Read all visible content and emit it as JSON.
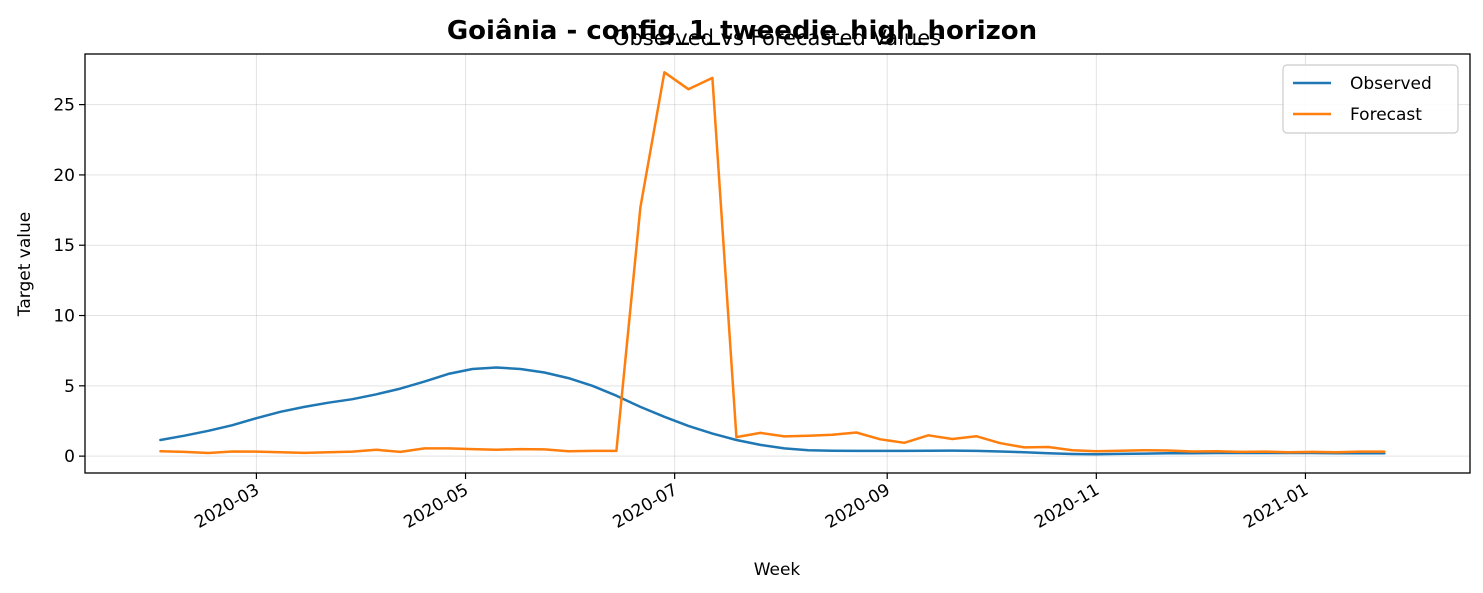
{
  "chart_data": {
    "type": "line",
    "title": "Goiânia - config_1_tweedie_high_horizon",
    "subtitle": "Observed vs Forecasted Values",
    "xlabel": "Week",
    "ylabel": "Target value",
    "x_axis_type": "date",
    "xlim": [
      "2020-01-11",
      "2021-02-18"
    ],
    "ylim": [
      -1.2,
      28.6
    ],
    "x_ticks": [
      "2020-03",
      "2020-05",
      "2020-07",
      "2020-09",
      "2020-11",
      "2021-01"
    ],
    "y_ticks": [
      0,
      5,
      10,
      15,
      20,
      25
    ],
    "grid": true,
    "legend_position": "top-right",
    "x": [
      "2020-02-02",
      "2020-02-09",
      "2020-02-16",
      "2020-02-23",
      "2020-03-01",
      "2020-03-08",
      "2020-03-15",
      "2020-03-22",
      "2020-03-29",
      "2020-04-05",
      "2020-04-12",
      "2020-04-19",
      "2020-04-26",
      "2020-05-03",
      "2020-05-10",
      "2020-05-17",
      "2020-05-24",
      "2020-05-31",
      "2020-06-07",
      "2020-06-14",
      "2020-06-21",
      "2020-06-28",
      "2020-07-05",
      "2020-07-12",
      "2020-07-19",
      "2020-07-26",
      "2020-08-02",
      "2020-08-09",
      "2020-08-16",
      "2020-08-23",
      "2020-08-30",
      "2020-09-06",
      "2020-09-13",
      "2020-09-20",
      "2020-09-27",
      "2020-10-04",
      "2020-10-11",
      "2020-10-18",
      "2020-10-25",
      "2020-11-01",
      "2020-11-08",
      "2020-11-15",
      "2020-11-22",
      "2020-11-29",
      "2020-12-06",
      "2020-12-13",
      "2020-12-20",
      "2020-12-27",
      "2021-01-03",
      "2021-01-10",
      "2021-01-17",
      "2021-01-24"
    ],
    "series": [
      {
        "name": "Observed",
        "color": "#1f77b4",
        "values": [
          1.15,
          1.45,
          1.8,
          2.2,
          2.7,
          3.15,
          3.5,
          3.8,
          4.05,
          4.4,
          4.8,
          5.3,
          5.85,
          6.2,
          6.3,
          6.2,
          5.95,
          5.55,
          5.0,
          4.3,
          3.5,
          2.8,
          2.15,
          1.6,
          1.15,
          0.8,
          0.55,
          0.42,
          0.38,
          0.37,
          0.37,
          0.37,
          0.38,
          0.39,
          0.37,
          0.33,
          0.27,
          0.2,
          0.15,
          0.14,
          0.16,
          0.18,
          0.2,
          0.21,
          0.22,
          0.22,
          0.22,
          0.22,
          0.22,
          0.21,
          0.2,
          0.2
        ]
      },
      {
        "name": "Forecast",
        "color": "#ff7f0e",
        "values": [
          0.35,
          0.3,
          0.22,
          0.33,
          0.32,
          0.27,
          0.23,
          0.28,
          0.32,
          0.45,
          0.3,
          0.55,
          0.55,
          0.5,
          0.45,
          0.5,
          0.48,
          0.35,
          0.37,
          0.37,
          17.7,
          27.3,
          26.1,
          26.9,
          1.35,
          1.65,
          1.4,
          1.45,
          1.52,
          1.68,
          1.2,
          0.95,
          1.48,
          1.22,
          1.42,
          0.92,
          0.62,
          0.65,
          0.42,
          0.35,
          0.38,
          0.42,
          0.4,
          0.33,
          0.35,
          0.3,
          0.32,
          0.28,
          0.3,
          0.28,
          0.32,
          0.32
        ]
      }
    ]
  }
}
